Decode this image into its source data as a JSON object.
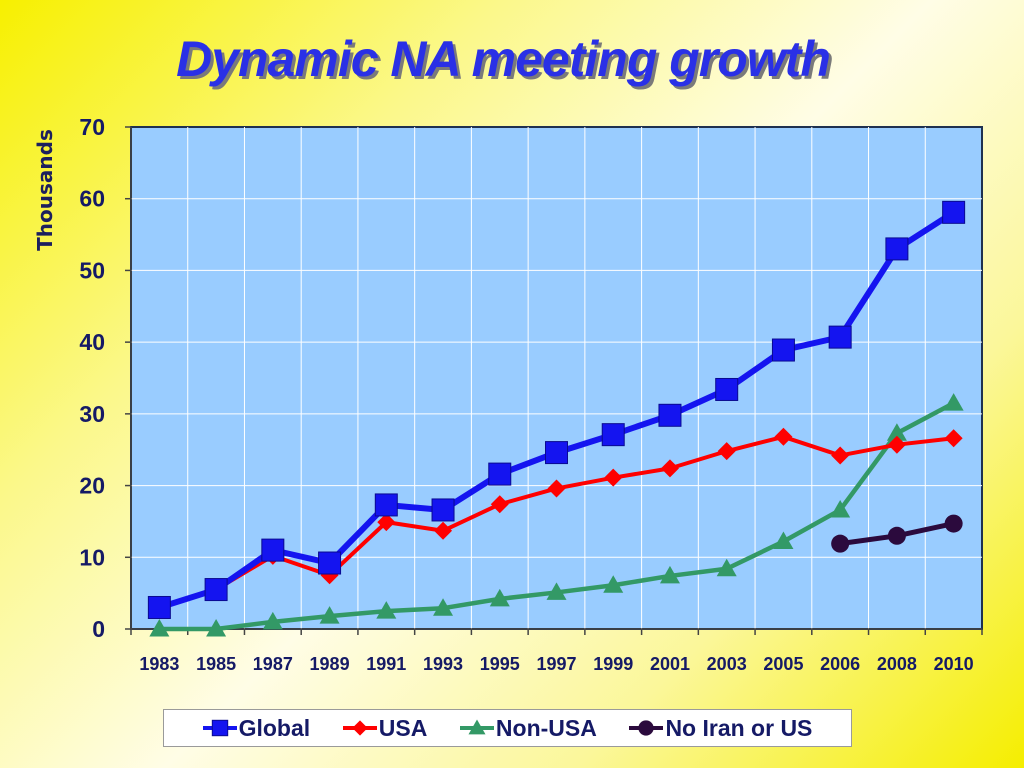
{
  "slide": {
    "title": "Dynamic NA meeting growth"
  },
  "chart_data": {
    "type": "line",
    "title": "Dynamic NA meeting growth",
    "xlabel": "",
    "ylabel": "Thousands",
    "ylim": [
      0,
      70
    ],
    "yticks": [
      0,
      10,
      20,
      30,
      40,
      50,
      60,
      70
    ],
    "grid": true,
    "legend_position": "bottom",
    "plot_background": "#99ccff",
    "categories": [
      "1983",
      "1985",
      "1987",
      "1989",
      "1991",
      "1993",
      "1995",
      "1997",
      "1999",
      "2001",
      "2003",
      "2005",
      "2006",
      "2008",
      "2010"
    ],
    "series": [
      {
        "name": "Global",
        "color": "#1414f0",
        "marker": "square",
        "values": [
          3,
          5.5,
          11,
          9.2,
          17.3,
          16.6,
          21.6,
          24.6,
          27.1,
          29.8,
          33.4,
          38.9,
          40.7,
          53,
          58.1
        ]
      },
      {
        "name": "USA",
        "color": "#ff0000",
        "marker": "diamond",
        "values": [
          3,
          5.5,
          10.2,
          7.5,
          14.9,
          13.7,
          17.4,
          19.6,
          21.1,
          22.4,
          24.8,
          26.8,
          24.2,
          25.7,
          26.6
        ]
      },
      {
        "name": "Non-USA",
        "color": "#339966",
        "marker": "triangle",
        "values": [
          0,
          0,
          1,
          1.8,
          2.5,
          2.9,
          4.2,
          5.1,
          6.1,
          7.4,
          8.4,
          12.2,
          16.6,
          27.3,
          31.5
        ]
      },
      {
        "name": "No Iran or US",
        "color": "#2b0a3d",
        "marker": "circle",
        "values": [
          null,
          null,
          null,
          null,
          null,
          null,
          null,
          null,
          null,
          null,
          null,
          null,
          11.9,
          13,
          14.7
        ]
      }
    ]
  }
}
